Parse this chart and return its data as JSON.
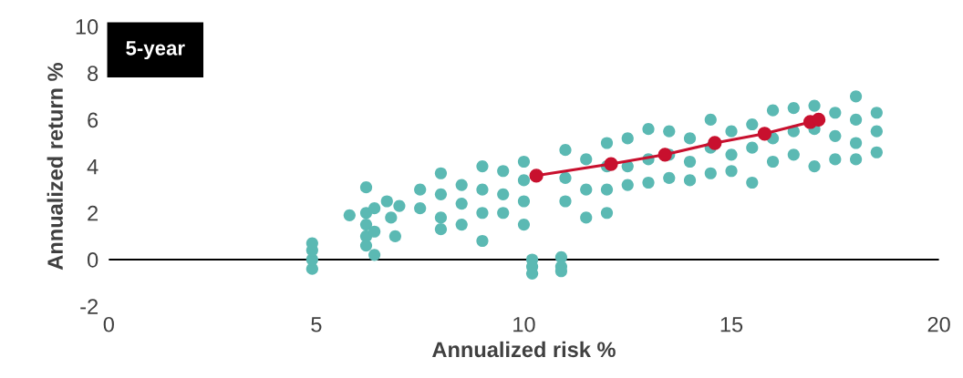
{
  "chart_data": {
    "type": "scatter",
    "xlabel": "Annualized risk %",
    "ylabel": "Annualized return %",
    "annotations": [
      "5-year"
    ],
    "xlim": [
      0,
      20
    ],
    "xticks": [
      0,
      5,
      10,
      15,
      20
    ],
    "ylim": [
      -2,
      10
    ],
    "yticks": [
      -2,
      0,
      2,
      4,
      6,
      8,
      10
    ],
    "grid": false,
    "legend": false,
    "marker": "circle",
    "ref_lines": [
      {
        "axis": "y",
        "value": 0,
        "color": "#000000"
      }
    ],
    "series": [
      {
        "color": "#5bb9b3",
        "x": [
          4.9,
          4.9,
          4.9,
          4.9,
          5.8,
          6.2,
          6.2,
          6.2,
          6.2,
          6.2,
          6.4,
          6.4,
          6.4,
          6.7,
          6.8,
          6.9,
          7.0,
          7.5,
          7.5,
          8.0,
          8.0,
          8.0,
          8.0,
          8.5,
          8.5,
          8.5,
          9.0,
          9.0,
          9.0,
          9.0,
          9.5,
          9.5,
          9.5,
          10.0,
          10.0,
          10.0,
          10.0,
          10.2,
          10.2,
          10.2,
          10.9,
          10.9,
          10.9,
          11.0,
          11.0,
          11.0,
          11.5,
          11.5,
          11.5,
          12.0,
          12.0,
          12.0,
          12.0,
          12.5,
          12.5,
          12.5,
          13.0,
          13.0,
          13.0,
          13.5,
          13.5,
          13.5,
          14.0,
          14.0,
          14.0,
          14.5,
          14.5,
          14.5,
          15.0,
          15.0,
          15.0,
          15.5,
          15.5,
          15.5,
          16.0,
          16.0,
          16.0,
          16.5,
          16.5,
          16.5,
          17.0,
          17.0,
          17.0,
          17.5,
          17.5,
          17.5,
          18.0,
          18.0,
          18.0,
          18.0,
          18.5,
          18.5,
          18.5
        ],
        "values": [
          -0.4,
          0,
          0.4,
          0.7,
          1.9,
          3.1,
          2.0,
          1.5,
          1.0,
          0.6,
          0.2,
          1.2,
          2.2,
          2.5,
          1.8,
          1.0,
          2.3,
          3.0,
          2.2,
          3.7,
          2.8,
          1.8,
          1.3,
          3.2,
          2.4,
          1.5,
          4.0,
          3.0,
          2.0,
          0.8,
          3.8,
          2.8,
          2.0,
          4.2,
          3.4,
          2.5,
          1.5,
          0,
          -0.3,
          -0.6,
          0.1,
          -0.3,
          -0.5,
          4.7,
          3.5,
          2.5,
          4.3,
          3.0,
          1.8,
          5.0,
          4.0,
          3.0,
          2.0,
          5.2,
          4.0,
          3.2,
          5.6,
          4.3,
          3.3,
          5.5,
          4.5,
          3.5,
          5.2,
          4.2,
          3.4,
          6.0,
          4.8,
          3.7,
          5.5,
          4.5,
          3.8,
          5.8,
          4.8,
          3.3,
          6.4,
          5.2,
          4.2,
          6.5,
          5.5,
          4.5,
          6.6,
          5.6,
          4.0,
          6.3,
          5.3,
          4.3,
          7.0,
          6.0,
          5.0,
          4.3,
          6.3,
          5.5,
          4.6
        ]
      },
      {
        "type": "line",
        "color": "#c8102e",
        "x": [
          10.3,
          12.1,
          13.4,
          14.6,
          15.8,
          16.9,
          17.1
        ],
        "values": [
          3.6,
          4.1,
          4.5,
          5.0,
          5.4,
          5.9,
          6.0
        ]
      }
    ]
  }
}
